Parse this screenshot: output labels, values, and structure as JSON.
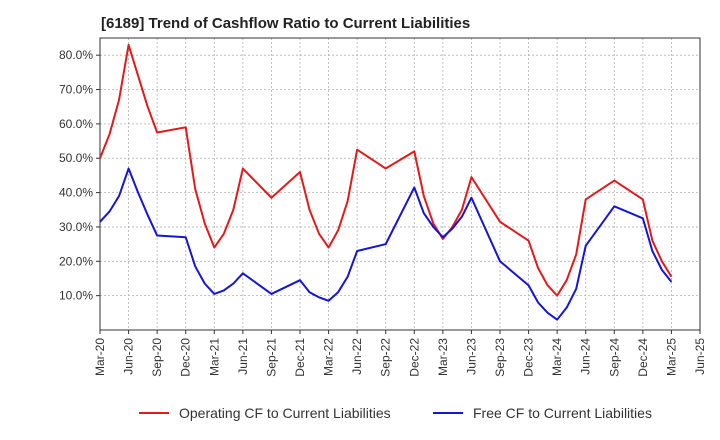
{
  "title": "[6189]  Trend of Cashflow Ratio to Current Liabilities",
  "colors": {
    "operating": "#e31a1c",
    "free": "#1515d4",
    "grid": "#b0b0b0",
    "axis": "#333333"
  },
  "chart_data": {
    "type": "line",
    "title": "[6189]  Trend of Cashflow Ratio to Current Liabilities",
    "xlabel": "",
    "ylabel": "",
    "x_tick_labels": [
      "Mar-20",
      "Jun-20",
      "Sep-20",
      "Dec-20",
      "Mar-21",
      "Jun-21",
      "Sep-21",
      "Dec-21",
      "Mar-22",
      "Jun-22",
      "Sep-22",
      "Dec-22",
      "Mar-23",
      "Jun-23",
      "Sep-23",
      "Dec-23",
      "Mar-24",
      "Jun-24",
      "Sep-24",
      "Dec-24",
      "Mar-25",
      "Jun-25"
    ],
    "y_tick_labels": [
      "10.0%",
      "20.0%",
      "30.0%",
      "40.0%",
      "50.0%",
      "60.0%",
      "70.0%",
      "80.0%"
    ],
    "y_ticks": [
      10,
      20,
      30,
      40,
      50,
      60,
      70,
      80
    ],
    "ylim": [
      0,
      85
    ],
    "xlim": [
      "2020-03",
      "2025-06"
    ],
    "grid": true,
    "legend_position": "bottom",
    "series": [
      {
        "name": "Operating CF to Current Liabilities",
        "color": "#e31a1c",
        "x": [
          "2020-03",
          "2020-04",
          "2020-05",
          "2020-06",
          "2020-07",
          "2020-08",
          "2020-09",
          "2020-12",
          "2021-01",
          "2021-02",
          "2021-03",
          "2021-04",
          "2021-05",
          "2021-06",
          "2021-09",
          "2021-12",
          "2022-01",
          "2022-02",
          "2022-03",
          "2022-04",
          "2022-05",
          "2022-06",
          "2022-09",
          "2022-12",
          "2023-01",
          "2023-02",
          "2023-03",
          "2023-04",
          "2023-05",
          "2023-06",
          "2023-09",
          "2023-12",
          "2024-01",
          "2024-02",
          "2024-03",
          "2024-04",
          "2024-05",
          "2024-06",
          "2024-09",
          "2024-12",
          "2025-01",
          "2025-02",
          "2025-03"
        ],
        "values": [
          50,
          57,
          67,
          83,
          74,
          65,
          57.5,
          59,
          41,
          31,
          24,
          28,
          35,
          47,
          38.5,
          46,
          35,
          28,
          24,
          29,
          37.5,
          52.5,
          47,
          52,
          39,
          31,
          26.5,
          30,
          35,
          44.5,
          31.5,
          26,
          18,
          13,
          10,
          14.5,
          22,
          38,
          43.5,
          38,
          26,
          20,
          15.5
        ]
      },
      {
        "name": "Free CF to Current Liabilities",
        "color": "#1515d4",
        "x": [
          "2020-03",
          "2020-04",
          "2020-05",
          "2020-06",
          "2020-07",
          "2020-08",
          "2020-09",
          "2020-12",
          "2021-01",
          "2021-02",
          "2021-03",
          "2021-04",
          "2021-05",
          "2021-06",
          "2021-09",
          "2021-12",
          "2022-01",
          "2022-02",
          "2022-03",
          "2022-04",
          "2022-05",
          "2022-06",
          "2022-09",
          "2022-12",
          "2023-01",
          "2023-02",
          "2023-03",
          "2023-04",
          "2023-05",
          "2023-06",
          "2023-09",
          "2023-12",
          "2024-01",
          "2024-02",
          "2024-03",
          "2024-04",
          "2024-05",
          "2024-06",
          "2024-09",
          "2024-12",
          "2025-01",
          "2025-02",
          "2025-03"
        ],
        "values": [
          31.5,
          34.5,
          39,
          47,
          40,
          33.5,
          27.5,
          27,
          18.5,
          13.5,
          10.5,
          11.5,
          13.5,
          16.5,
          10.5,
          14.5,
          11,
          9.5,
          8.5,
          11,
          15.5,
          23,
          25,
          41.5,
          34,
          30,
          27,
          29.5,
          33,
          38.5,
          20,
          13,
          8,
          5,
          3,
          6.5,
          12,
          24.5,
          36,
          32.5,
          23,
          17.5,
          14
        ]
      }
    ]
  }
}
